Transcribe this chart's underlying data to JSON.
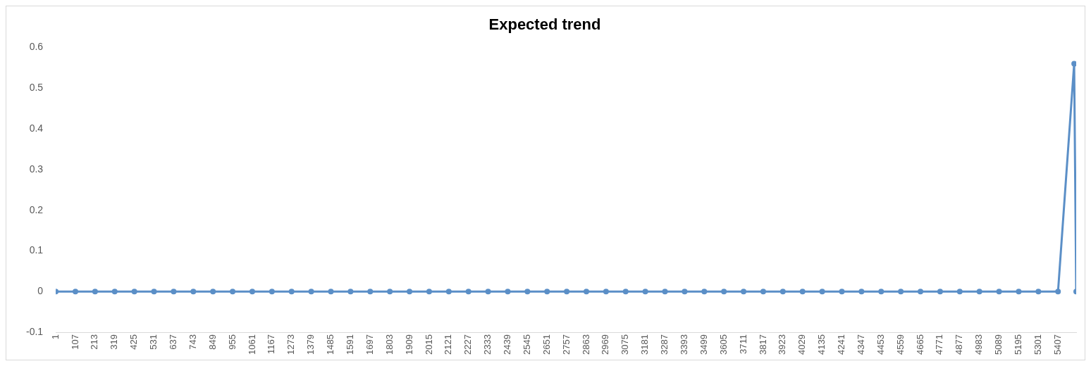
{
  "chart_data": {
    "type": "line",
    "title": "Expected trend",
    "x": [
      1,
      107,
      213,
      319,
      425,
      531,
      637,
      743,
      849,
      955,
      1061,
      1167,
      1273,
      1379,
      1485,
      1591,
      1697,
      1803,
      1909,
      2015,
      2121,
      2227,
      2333,
      2439,
      2545,
      2651,
      2757,
      2863,
      2969,
      3075,
      3181,
      3287,
      3393,
      3499,
      3605,
      3711,
      3817,
      3923,
      4029,
      4135,
      4241,
      4347,
      4453,
      4559,
      4665,
      4771,
      4877,
      4983,
      5089,
      5195,
      5301,
      5407,
      5494,
      5505
    ],
    "series": [
      {
        "color": "#5b8fc7",
        "values": [
          0,
          0,
          0,
          0,
          0,
          0,
          0,
          0,
          0,
          0,
          0,
          0,
          0,
          0,
          0,
          0,
          0,
          0,
          0,
          0,
          0,
          0,
          0,
          0,
          0,
          0,
          0,
          0,
          0,
          0,
          0,
          0,
          0,
          0,
          0,
          0,
          0,
          0,
          0,
          0,
          0,
          0,
          0,
          0,
          0,
          0,
          0,
          0,
          0,
          0,
          0,
          0,
          0.56,
          0
        ]
      }
    ],
    "xlim": [
      1,
      5505
    ],
    "xticks": [
      1,
      107,
      213,
      319,
      425,
      531,
      637,
      743,
      849,
      955,
      1061,
      1167,
      1273,
      1379,
      1485,
      1591,
      1697,
      1803,
      1909,
      2015,
      2121,
      2227,
      2333,
      2439,
      2545,
      2651,
      2757,
      2863,
      2969,
      3075,
      3181,
      3287,
      3393,
      3499,
      3605,
      3711,
      3817,
      3923,
      4029,
      4135,
      4241,
      4347,
      4453,
      4559,
      4665,
      4771,
      4877,
      4983,
      5089,
      5195,
      5301,
      5407
    ],
    "ylim": [
      -0.1,
      0.6
    ],
    "yticks": [
      -0.1,
      0,
      0.1,
      0.2,
      0.3,
      0.4,
      0.5,
      0.6
    ],
    "grid": false,
    "legend": false,
    "marker": "circle",
    "line_style": "solid"
  }
}
